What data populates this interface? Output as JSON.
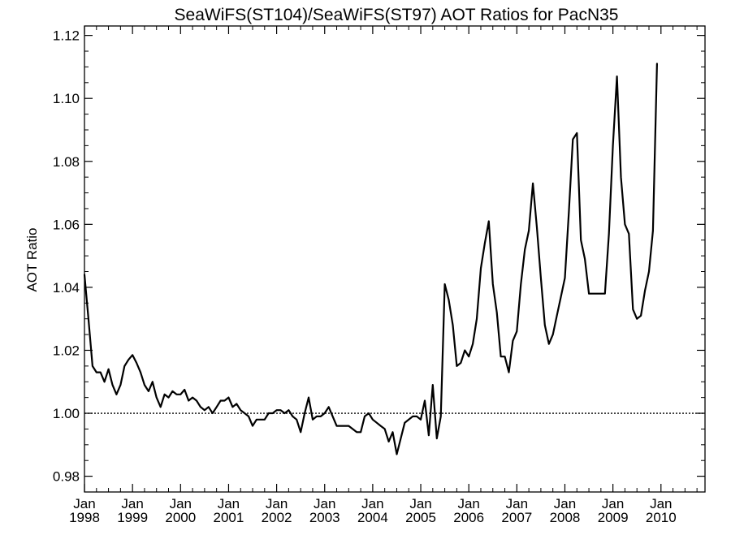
{
  "chart_data": {
    "type": "line",
    "title": "SeaWiFS(ST104)/SeaWiFS(ST97)  AOT Ratios for PacN35",
    "xlabel": "",
    "ylabel": "AOT Ratio",
    "xlim": [
      "1998-01",
      "2010-12"
    ],
    "ylim": [
      0.975,
      1.123
    ],
    "grid": false,
    "yticks": [
      0.98,
      1.0,
      1.02,
      1.04,
      1.06,
      1.08,
      1.1,
      1.12
    ],
    "ytick_labels": [
      "0.98",
      "1.00",
      "1.02",
      "1.04",
      "1.06",
      "1.08",
      "1.10",
      "1.12"
    ],
    "xticks": [
      {
        "date": "1998-01",
        "month": "Jan",
        "year": "1998"
      },
      {
        "date": "1999-01",
        "month": "Jan",
        "year": "1999"
      },
      {
        "date": "2000-01",
        "month": "Jan",
        "year": "2000"
      },
      {
        "date": "2001-01",
        "month": "Jan",
        "year": "2001"
      },
      {
        "date": "2002-01",
        "month": "Jan",
        "year": "2002"
      },
      {
        "date": "2003-01",
        "month": "Jan",
        "year": "2003"
      },
      {
        "date": "2004-01",
        "month": "Jan",
        "year": "2004"
      },
      {
        "date": "2005-01",
        "month": "Jan",
        "year": "2005"
      },
      {
        "date": "2006-01",
        "month": "Jan",
        "year": "2006"
      },
      {
        "date": "2007-01",
        "month": "Jan",
        "year": "2007"
      },
      {
        "date": "2008-01",
        "month": "Jan",
        "year": "2008"
      },
      {
        "date": "2009-01",
        "month": "Jan",
        "year": "2009"
      },
      {
        "date": "2010-01",
        "month": "Jan",
        "year": "2010"
      }
    ],
    "reference_line": {
      "y": 1.0,
      "style": "dotted"
    },
    "series": [
      {
        "color": "#000000",
        "start": "1998-01",
        "step": "month",
        "values": [
          1.044,
          1.03,
          1.015,
          1.013,
          1.013,
          1.01,
          1.014,
          1.009,
          1.006,
          1.009,
          1.015,
          1.017,
          1.0185,
          1.016,
          1.013,
          1.009,
          1.007,
          1.01,
          1.005,
          1.002,
          1.006,
          1.005,
          1.007,
          1.006,
          1.006,
          1.0075,
          1.004,
          1.005,
          1.004,
          1.002,
          1.001,
          1.002,
          1.0,
          1.002,
          1.004,
          1.004,
          1.005,
          1.002,
          1.003,
          1.001,
          1.0,
          0.999,
          0.996,
          0.998,
          0.998,
          0.998,
          1.0,
          1.0,
          1.001,
          1.001,
          1.0,
          1.001,
          0.999,
          0.998,
          0.994,
          1.0,
          1.005,
          0.998,
          0.999,
          0.999,
          1.0,
          1.002,
          0.999,
          0.996,
          0.996,
          0.996,
          0.996,
          0.995,
          0.994,
          0.994,
          0.999,
          1.0,
          0.998,
          0.997,
          0.996,
          0.995,
          0.991,
          0.994,
          0.987,
          0.992,
          0.997,
          0.998,
          0.999,
          0.999,
          0.998,
          1.004,
          0.993,
          1.009,
          0.992,
          0.999,
          1.041,
          1.036,
          1.028,
          1.015,
          1.016,
          1.02,
          1.018,
          1.022,
          1.03,
          1.046,
          1.054,
          1.061,
          1.041,
          1.032,
          1.018,
          1.018,
          1.013,
          1.023,
          1.026,
          1.041,
          1.052,
          1.058,
          1.073,
          1.059,
          1.043,
          1.028,
          1.022,
          1.025,
          1.031,
          1.037,
          1.043,
          1.064,
          1.087,
          1.089,
          1.055,
          1.049,
          1.038,
          1.038,
          1.038,
          1.038,
          1.038,
          1.057,
          1.085,
          1.107,
          1.075,
          1.06,
          1.057,
          1.033,
          1.03,
          1.031,
          1.039,
          1.045,
          1.058,
          1.111
        ]
      }
    ]
  }
}
